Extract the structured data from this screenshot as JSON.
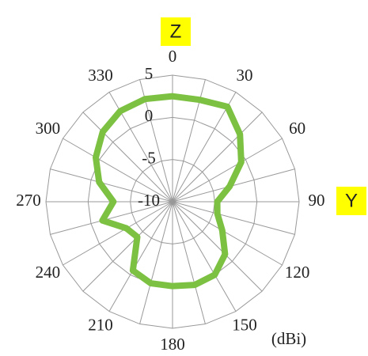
{
  "chart_data": {
    "type": "polar",
    "theta": [
      0,
      15,
      30,
      45,
      60,
      75,
      90,
      105,
      120,
      135,
      150,
      165,
      180,
      195,
      210,
      225,
      240,
      255,
      270,
      285,
      300,
      315,
      330,
      345
    ],
    "values": [
      2.5,
      2.5,
      3,
      1.3,
      -0.6,
      -3,
      -4.7,
      -4.5,
      -3.2,
      -1.2,
      0,
      0.2,
      0,
      0,
      -0.6,
      -4.1,
      -3.7,
      -1.4,
      -3,
      -1,
      0.5,
      1.7,
      2.4,
      2.6
    ],
    "color": "#7dc142",
    "rlim": [
      -10,
      5
    ],
    "rticks": [
      -10,
      -5,
      0,
      5
    ],
    "thetaticks": [
      0,
      30,
      60,
      90,
      120,
      150,
      180,
      210,
      240,
      270,
      300,
      330
    ],
    "axis_labels": {
      "top": "Z",
      "right": "Y"
    },
    "unit": "(dBi)"
  }
}
